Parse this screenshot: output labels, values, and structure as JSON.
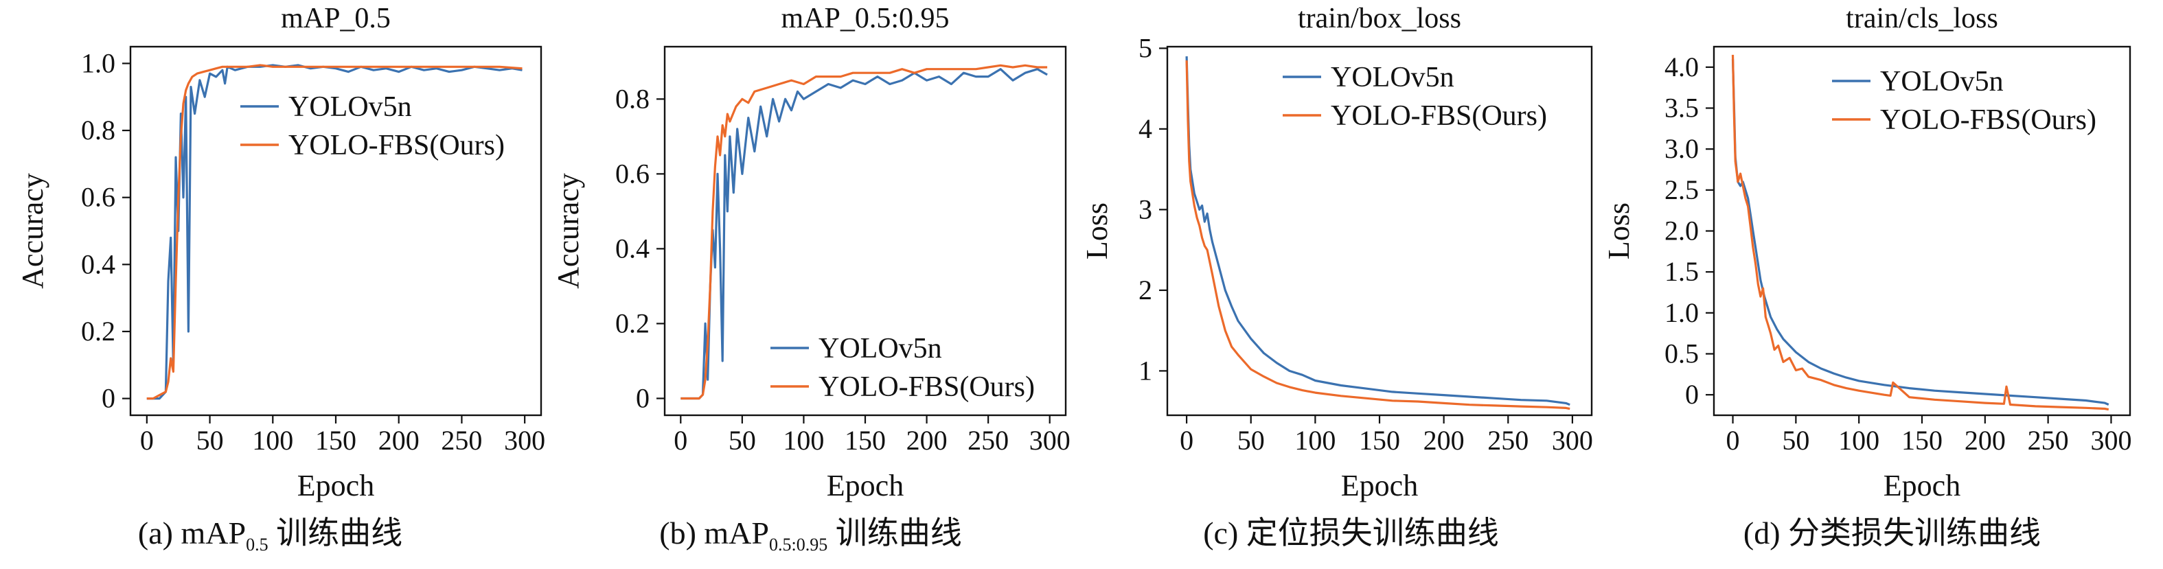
{
  "captions": [
    {
      "prefix": "(a) mAP",
      "sub": "0.5",
      "suffix": " 训练曲线"
    },
    {
      "prefix": "(b) mAP",
      "sub": "0.5:0.95",
      "suffix": " 训练曲线"
    },
    {
      "prefix": "(c) 定位损失训练曲线",
      "sub": "",
      "suffix": ""
    },
    {
      "prefix": "(d) 分类损失训练曲线",
      "sub": "",
      "suffix": ""
    }
  ],
  "colors": {
    "YOLOv5n": "#3b72b0",
    "YOLO-FBS(Ours)": "#ec6a2a"
  },
  "chart_data": [
    {
      "type": "line",
      "title": "mAP_0.5",
      "xlabel": "Epoch",
      "ylabel": "Accuracy",
      "xlim": [
        -13,
        313
      ],
      "ylim": [
        -0.05,
        1.05
      ],
      "xticks": [
        0,
        50,
        100,
        150,
        200,
        250,
        300
      ],
      "yticks": [
        0,
        0.2,
        0.4,
        0.6,
        0.8,
        1.0
      ],
      "ytick_labels": [
        "0",
        "0.2",
        "0.4",
        "0.6",
        "0.8",
        "1.0"
      ],
      "legend": "upper-center",
      "grid": false,
      "series": [
        {
          "name": "YOLOv5n",
          "x": [
            0,
            5,
            10,
            15,
            17,
            19,
            21,
            23,
            25,
            27,
            29,
            31,
            33,
            35,
            38,
            42,
            46,
            50,
            55,
            60,
            62,
            64,
            70,
            80,
            90,
            100,
            110,
            120,
            130,
            140,
            150,
            160,
            170,
            180,
            190,
            200,
            210,
            220,
            230,
            240,
            250,
            260,
            270,
            280,
            290,
            298
          ],
          "y": [
            0.0,
            0.0,
            0.0,
            0.02,
            0.35,
            0.48,
            0.1,
            0.72,
            0.5,
            0.85,
            0.6,
            0.9,
            0.2,
            0.93,
            0.85,
            0.95,
            0.9,
            0.97,
            0.96,
            0.98,
            0.94,
            0.99,
            0.98,
            0.99,
            0.99,
            0.995,
            0.99,
            0.995,
            0.985,
            0.99,
            0.985,
            0.975,
            0.99,
            0.98,
            0.985,
            0.975,
            0.99,
            0.98,
            0.985,
            0.975,
            0.98,
            0.99,
            0.985,
            0.98,
            0.985,
            0.98
          ]
        },
        {
          "name": "YOLO-FBS(Ours)",
          "x": [
            0,
            5,
            10,
            15,
            17,
            19,
            21,
            23,
            25,
            27,
            29,
            31,
            33,
            36,
            40,
            45,
            50,
            55,
            60,
            70,
            80,
            90,
            100,
            120,
            140,
            160,
            180,
            200,
            220,
            240,
            260,
            280,
            298
          ],
          "y": [
            0.0,
            0.0,
            0.01,
            0.02,
            0.05,
            0.12,
            0.08,
            0.35,
            0.6,
            0.78,
            0.88,
            0.92,
            0.94,
            0.96,
            0.97,
            0.975,
            0.98,
            0.985,
            0.99,
            0.99,
            0.99,
            0.995,
            0.99,
            0.99,
            0.99,
            0.99,
            0.99,
            0.99,
            0.99,
            0.99,
            0.99,
            0.99,
            0.985
          ]
        }
      ]
    },
    {
      "type": "line",
      "title": "mAP_0.5:0.95",
      "xlabel": "Epoch",
      "ylabel": "Accuracy",
      "xlim": [
        -13,
        313
      ],
      "ylim": [
        -0.045,
        0.94
      ],
      "xticks": [
        0,
        50,
        100,
        150,
        200,
        250,
        300
      ],
      "yticks": [
        0,
        0.2,
        0.4,
        0.6,
        0.8
      ],
      "ytick_labels": [
        "0",
        "0.2",
        "0.4",
        "0.6",
        "0.8"
      ],
      "legend": "lower-right",
      "grid": false,
      "series": [
        {
          "name": "YOLOv5n",
          "x": [
            0,
            5,
            10,
            15,
            18,
            20,
            22,
            24,
            26,
            28,
            30,
            32,
            34,
            36,
            38,
            40,
            43,
            46,
            50,
            55,
            60,
            65,
            70,
            75,
            80,
            85,
            90,
            95,
            100,
            110,
            120,
            130,
            140,
            150,
            160,
            170,
            180,
            190,
            200,
            210,
            220,
            230,
            240,
            250,
            260,
            270,
            280,
            290,
            298
          ],
          "y": [
            0.0,
            0.0,
            0.0,
            0.0,
            0.01,
            0.2,
            0.05,
            0.3,
            0.45,
            0.35,
            0.6,
            0.4,
            0.1,
            0.65,
            0.5,
            0.7,
            0.55,
            0.72,
            0.6,
            0.75,
            0.66,
            0.78,
            0.7,
            0.8,
            0.74,
            0.8,
            0.77,
            0.82,
            0.8,
            0.82,
            0.84,
            0.83,
            0.85,
            0.84,
            0.86,
            0.84,
            0.85,
            0.87,
            0.85,
            0.86,
            0.84,
            0.87,
            0.86,
            0.86,
            0.88,
            0.85,
            0.87,
            0.88,
            0.865
          ]
        },
        {
          "name": "YOLO-FBS(Ours)",
          "x": [
            0,
            5,
            10,
            15,
            18,
            20,
            22,
            24,
            26,
            28,
            30,
            32,
            34,
            36,
            38,
            40,
            45,
            50,
            55,
            60,
            70,
            80,
            90,
            100,
            110,
            120,
            130,
            140,
            150,
            160,
            170,
            180,
            190,
            200,
            210,
            220,
            230,
            240,
            250,
            260,
            270,
            280,
            290,
            298
          ],
          "y": [
            0.0,
            0.0,
            0.0,
            0.0,
            0.01,
            0.05,
            0.15,
            0.3,
            0.5,
            0.62,
            0.7,
            0.65,
            0.73,
            0.7,
            0.76,
            0.74,
            0.78,
            0.8,
            0.79,
            0.82,
            0.83,
            0.84,
            0.85,
            0.84,
            0.86,
            0.86,
            0.86,
            0.87,
            0.87,
            0.87,
            0.87,
            0.88,
            0.87,
            0.88,
            0.88,
            0.88,
            0.88,
            0.88,
            0.885,
            0.89,
            0.885,
            0.89,
            0.885,
            0.885
          ]
        }
      ]
    },
    {
      "type": "line",
      "title": "train/box_loss",
      "xlabel": "Epoch",
      "ylabel": "Loss",
      "xlim": [
        -15,
        315
      ],
      "ylim": [
        0.45,
        5.02
      ],
      "xticks": [
        0,
        50,
        100,
        150,
        200,
        250,
        300
      ],
      "yticks": [
        1,
        2,
        3,
        4,
        5
      ],
      "ytick_labels": [
        "1",
        "2",
        "3",
        "4",
        "5"
      ],
      "legend": "upper-center",
      "grid": false,
      "series": [
        {
          "name": "YOLOv5n",
          "x": [
            0,
            1,
            2,
            3,
            4,
            6,
            8,
            10,
            12,
            14,
            16,
            18,
            20,
            25,
            30,
            35,
            40,
            50,
            60,
            70,
            80,
            90,
            100,
            120,
            140,
            160,
            180,
            200,
            220,
            240,
            260,
            280,
            295,
            298
          ],
          "y": [
            4.9,
            4.3,
            3.8,
            3.5,
            3.4,
            3.2,
            3.1,
            3.0,
            3.05,
            2.85,
            2.95,
            2.75,
            2.6,
            2.3,
            2.0,
            1.8,
            1.62,
            1.4,
            1.22,
            1.1,
            1.0,
            0.95,
            0.88,
            0.82,
            0.78,
            0.74,
            0.72,
            0.7,
            0.68,
            0.66,
            0.64,
            0.63,
            0.6,
            0.58
          ]
        },
        {
          "name": "YOLO-FBS(Ours)",
          "x": [
            0,
            1,
            2,
            3,
            4,
            6,
            8,
            10,
            12,
            14,
            16,
            18,
            20,
            25,
            30,
            35,
            40,
            50,
            60,
            70,
            80,
            90,
            100,
            120,
            140,
            160,
            180,
            200,
            220,
            240,
            260,
            280,
            295,
            298
          ],
          "y": [
            4.85,
            4.1,
            3.6,
            3.35,
            3.25,
            3.05,
            2.9,
            2.8,
            2.65,
            2.55,
            2.5,
            2.35,
            2.2,
            1.8,
            1.5,
            1.3,
            1.2,
            1.02,
            0.93,
            0.85,
            0.8,
            0.76,
            0.73,
            0.69,
            0.66,
            0.63,
            0.62,
            0.6,
            0.58,
            0.57,
            0.56,
            0.55,
            0.54,
            0.53
          ]
        }
      ]
    },
    {
      "type": "line",
      "title": "train/cls_loss",
      "xlabel": "Epoch",
      "ylabel": "Loss",
      "xlim": [
        -15,
        315
      ],
      "ylim": [
        -0.25,
        4.25
      ],
      "xticks": [
        0,
        50,
        100,
        150,
        200,
        250,
        300
      ],
      "yticks": [
        0,
        0.5,
        1.0,
        1.5,
        2.0,
        2.5,
        3.0,
        3.5,
        4.0
      ],
      "ytick_labels": [
        "0",
        "0.5",
        "1.0",
        "1.5",
        "2.0",
        "2.5",
        "3.0",
        "3.5",
        "4.0"
      ],
      "legend": "upper-center",
      "grid": false,
      "series": [
        {
          "name": "YOLOv5n",
          "x": [
            0,
            1,
            2,
            4,
            6,
            8,
            10,
            12,
            14,
            16,
            18,
            20,
            22,
            25,
            30,
            35,
            40,
            50,
            60,
            70,
            80,
            90,
            100,
            120,
            140,
            160,
            180,
            200,
            220,
            240,
            260,
            280,
            295,
            298
          ],
          "y": [
            4.1,
            3.5,
            2.9,
            2.6,
            2.55,
            2.6,
            2.5,
            2.4,
            2.2,
            2.0,
            1.8,
            1.6,
            1.4,
            1.2,
            0.95,
            0.8,
            0.68,
            0.52,
            0.4,
            0.32,
            0.26,
            0.21,
            0.17,
            0.12,
            0.08,
            0.05,
            0.03,
            0.01,
            -0.01,
            -0.03,
            -0.05,
            -0.07,
            -0.1,
            -0.12
          ]
        },
        {
          "name": "YOLO-FBS(Ours)",
          "x": [
            0,
            1,
            2,
            4,
            6,
            8,
            10,
            12,
            14,
            16,
            18,
            20,
            22,
            24,
            26,
            28,
            30,
            33,
            36,
            40,
            45,
            50,
            55,
            60,
            70,
            80,
            90,
            100,
            120,
            125,
            127,
            140,
            160,
            180,
            200,
            215,
            217,
            220,
            240,
            260,
            280,
            295,
            298
          ],
          "y": [
            4.15,
            3.4,
            2.85,
            2.6,
            2.7,
            2.55,
            2.4,
            2.3,
            2.05,
            1.8,
            1.6,
            1.35,
            1.2,
            1.3,
            0.95,
            0.85,
            0.75,
            0.55,
            0.6,
            0.4,
            0.45,
            0.3,
            0.32,
            0.22,
            0.18,
            0.12,
            0.08,
            0.05,
            0.0,
            -0.01,
            0.15,
            -0.03,
            -0.06,
            -0.08,
            -0.1,
            -0.11,
            0.1,
            -0.12,
            -0.14,
            -0.15,
            -0.16,
            -0.17,
            -0.18
          ]
        }
      ]
    }
  ]
}
